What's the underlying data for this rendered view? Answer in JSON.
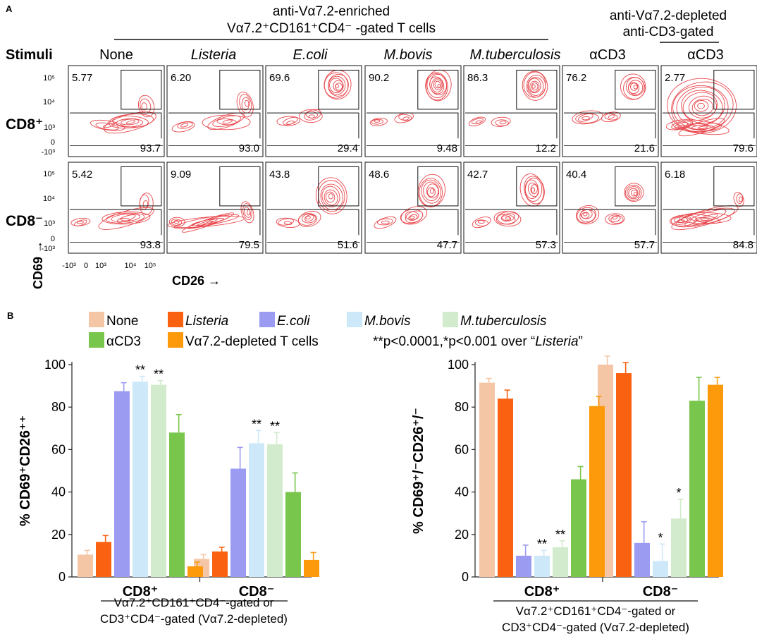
{
  "panel_a": {
    "letter": "A",
    "header_enriched_line1": "anti-Vα7.2-enriched",
    "header_enriched_line2": "Vα7.2⁺CD161⁺CD4⁻ -gated T cells",
    "header_depleted_line1": "anti-Vα7.2-depleted",
    "header_depleted_line2": "anti-CD3-gated",
    "stimuli_label": "Stimuli",
    "columns": [
      {
        "label": "None",
        "italic": false
      },
      {
        "label": "Listeria",
        "italic": true
      },
      {
        "label": "E.coli",
        "italic": true
      },
      {
        "label": "M.bovis",
        "italic": true
      },
      {
        "label": "M.tuberculosis",
        "italic": true
      },
      {
        "label": "αCD3",
        "italic": false
      },
      {
        "label": "αCD3",
        "italic": false
      }
    ],
    "rows": [
      {
        "label": "CD8⁺",
        "upper": [
          "5.77",
          "6.20",
          "69.6",
          "90.2",
          "86.3",
          "76.2",
          "2.77"
        ],
        "lower": [
          "93.7",
          "93.0",
          "29.4",
          "9.48",
          "12.2",
          "21.6",
          "79.6"
        ]
      },
      {
        "label": "CD8⁻",
        "upper": [
          "5.42",
          "9.09",
          "43.8",
          "48.6",
          "42.7",
          "40.4",
          "6.18"
        ],
        "lower": [
          "93.8",
          "79.5",
          "51.6",
          "47.7",
          "57.3",
          "57.7",
          "84.8"
        ]
      }
    ],
    "y_axis_label": "CD69 →",
    "x_axis_label": "CD26 →",
    "y_ticks": [
      "10⁵",
      "10⁴",
      "10³",
      "0",
      "-10³"
    ],
    "x_ticks": [
      "-10³",
      "0",
      "10³",
      "10⁴",
      "10⁵"
    ],
    "contour_color": "#e8474c"
  },
  "panel_b": {
    "letter": "B",
    "legend": [
      {
        "label": "None",
        "color": "#f5c6a6",
        "italic": false
      },
      {
        "label": "Listeria",
        "color": "#fa6110",
        "italic": true
      },
      {
        "label": "E.coli",
        "color": "#9b9bf2",
        "italic": true
      },
      {
        "label": "M.bovis",
        "color": "#cde9f9",
        "italic": true
      },
      {
        "label": "M.tuberculosis",
        "color": "#d3ebcd",
        "italic": true
      },
      {
        "label": "αCD3",
        "color": "#79c64d",
        "italic": false
      },
      {
        "label": "Vα7.2-depleted T cells",
        "color": "#fc9a0c",
        "italic": false
      }
    ],
    "significance_note_prefix": "**p<0.0001,*p<0.001 over “",
    "significance_note_italic": "Listeria",
    "significance_note_suffix": "”",
    "gating_line1": "Vα7.2⁺CD161⁺CD4⁻-gated or",
    "gating_line2": "CD3⁺CD4⁻-gated (Vα7.2-depleted)"
  },
  "chart_data": [
    {
      "type": "bar",
      "title": "",
      "ylabel": "% CD69⁺CD26⁺⁺",
      "xlabel": "",
      "ylim": [
        0,
        100
      ],
      "yticks": [
        0,
        20,
        40,
        60,
        80,
        100
      ],
      "categories": [
        "CD8⁺",
        "CD8⁻"
      ],
      "series": [
        {
          "name": "None",
          "values": [
            10.5,
            8.5
          ],
          "errors": [
            2.0,
            2.0
          ],
          "sig": [
            "",
            ""
          ]
        },
        {
          "name": "Listeria",
          "values": [
            16.5,
            12.0
          ],
          "errors": [
            3.0,
            2.0
          ],
          "sig": [
            "",
            ""
          ]
        },
        {
          "name": "E.coli",
          "values": [
            87.5,
            51.0
          ],
          "errors": [
            4.0,
            10.0
          ],
          "sig": [
            "",
            ""
          ]
        },
        {
          "name": "M.bovis",
          "values": [
            92.0,
            63.0
          ],
          "errors": [
            2.5,
            6.0
          ],
          "sig": [
            "**",
            "**"
          ]
        },
        {
          "name": "M.tuberculosis",
          "values": [
            90.5,
            62.5
          ],
          "errors": [
            2.0,
            5.5
          ],
          "sig": [
            "**",
            "**"
          ]
        },
        {
          "name": "αCD3",
          "values": [
            68.0,
            40.0
          ],
          "errors": [
            8.5,
            9.0
          ],
          "sig": [
            "",
            ""
          ]
        },
        {
          "name": "Vα7.2-depleted T cells",
          "values": [
            5.0,
            8.0
          ],
          "errors": [
            2.0,
            3.5
          ],
          "sig": [
            "",
            ""
          ]
        }
      ]
    },
    {
      "type": "bar",
      "title": "",
      "ylabel": "% CD69⁺/⁻CD26⁺/⁻",
      "xlabel": "",
      "ylim": [
        0,
        100
      ],
      "yticks": [
        0,
        20,
        40,
        60,
        80,
        100
      ],
      "categories": [
        "CD8⁺",
        "CD8⁻"
      ],
      "series": [
        {
          "name": "None",
          "values": [
            91.5,
            100.0
          ],
          "errors": [
            2.0,
            4.0
          ],
          "sig": [
            "",
            ""
          ]
        },
        {
          "name": "Listeria",
          "values": [
            84.0,
            96.0
          ],
          "errors": [
            4.0,
            5.0
          ],
          "sig": [
            "",
            ""
          ]
        },
        {
          "name": "E.coli",
          "values": [
            10.0,
            16.0
          ],
          "errors": [
            5.0,
            10.0
          ],
          "sig": [
            "",
            ""
          ]
        },
        {
          "name": "M.bovis",
          "values": [
            10.0,
            7.5
          ],
          "errors": [
            2.5,
            8.0
          ],
          "sig": [
            "**",
            "*"
          ]
        },
        {
          "name": "M.tuberculosis",
          "values": [
            14.0,
            27.5
          ],
          "errors": [
            3.0,
            9.0
          ],
          "sig": [
            "**",
            "*"
          ]
        },
        {
          "name": "αCD3",
          "values": [
            46.0,
            83.0
          ],
          "errors": [
            6.0,
            11.0
          ],
          "sig": [
            "",
            ""
          ]
        },
        {
          "name": "Vα7.2-depleted T cells",
          "values": [
            80.5,
            90.5
          ],
          "errors": [
            4.5,
            3.5
          ],
          "sig": [
            "",
            ""
          ]
        }
      ]
    }
  ]
}
